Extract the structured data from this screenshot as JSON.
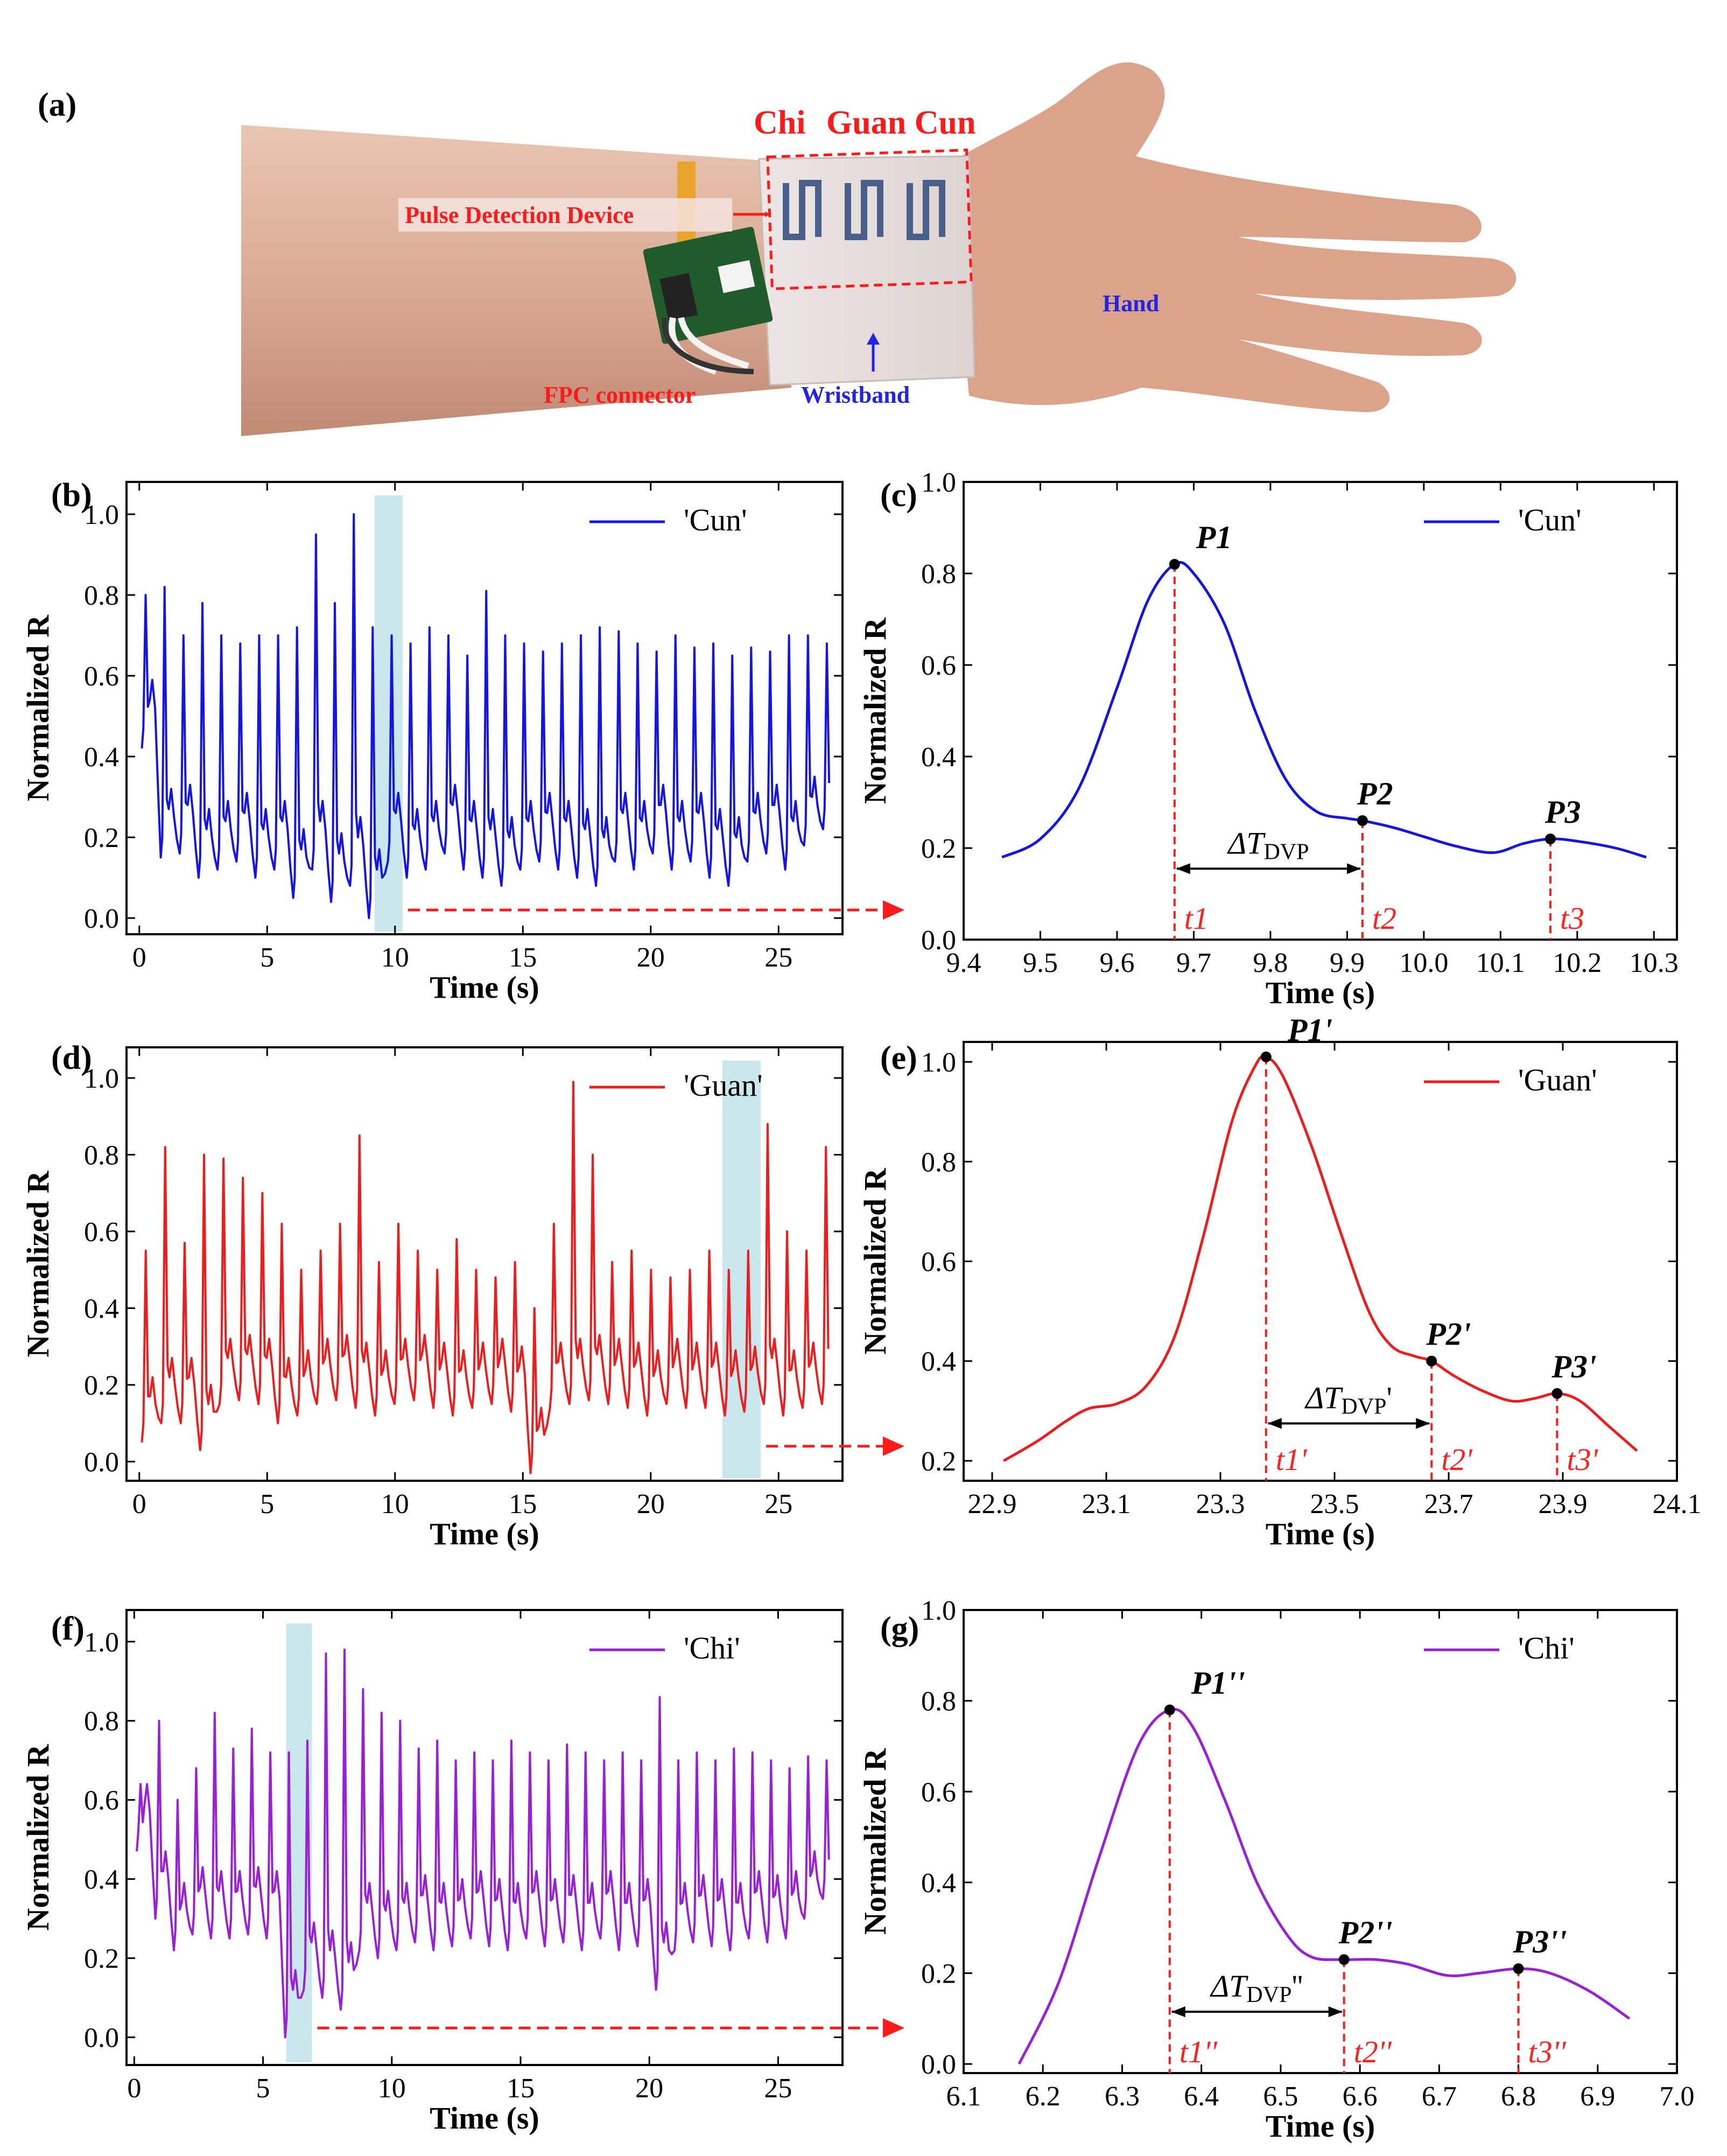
{
  "photo": {
    "panel_label": "(a)",
    "site_labels": [
      {
        "text": "Chi"
      },
      {
        "text": "Guan Cun"
      }
    ],
    "callouts": {
      "device": "Pulse Detection Device",
      "hand": "Hand",
      "fpc": "FPC connector",
      "wristband": "Wristband"
    },
    "colors": {
      "red": "#ff1a1a",
      "blue": "#2323e6"
    }
  },
  "chart_data": [
    {
      "id": "b",
      "panel_label": "(b)",
      "type": "line",
      "xlabel": "Time (s)",
      "ylabel": "Normalized R",
      "xlim": [
        -0.5,
        27.5
      ],
      "ylim": [
        -0.04,
        1.08
      ],
      "xticks": [
        "0",
        "5",
        "10",
        "15",
        "20",
        "25"
      ],
      "xtick_values": [
        0,
        5,
        10,
        15,
        20,
        25
      ],
      "yticks": [
        "0.0",
        "0.2",
        "0.4",
        "0.6",
        "0.8",
        "1.0"
      ],
      "ytick_values": [
        0,
        0.2,
        0.4,
        0.6,
        0.8,
        1.0
      ],
      "legend": "'Cun'",
      "color": "#1414e6",
      "highlight": [
        9.2,
        10.3
      ],
      "series": {
        "start": 0.1,
        "period": 0.74,
        "end": 27.0,
        "peaks": [
          0.8,
          0.82,
          0.7,
          0.78,
          0.7,
          0.68,
          0.7,
          0.7,
          0.72,
          0.95,
          0.78,
          1.0,
          0.72,
          0.7,
          0.68,
          0.72,
          0.7,
          0.65,
          0.81,
          0.7,
          0.68,
          0.66,
          0.68,
          0.7,
          0.72,
          0.71,
          0.68,
          0.66,
          0.7,
          0.67,
          0.68,
          0.65,
          0.67,
          0.66,
          0.7,
          0.7,
          0.68
        ],
        "troughs": [
          0.42,
          0.15,
          0.16,
          0.1,
          0.12,
          0.14,
          0.1,
          0.12,
          0.05,
          0.12,
          0.04,
          0.08,
          0.0,
          0.14,
          0.1,
          0.12,
          0.16,
          0.12,
          0.1,
          0.08,
          0.12,
          0.14,
          0.12,
          0.1,
          0.08,
          0.14,
          0.12,
          0.16,
          0.12,
          0.14,
          0.1,
          0.08,
          0.14,
          0.16,
          0.12,
          0.18,
          0.22
        ]
      }
    },
    {
      "id": "c",
      "panel_label": "(c)",
      "type": "line",
      "xlabel": "Time (s)",
      "ylabel": "Normalized R",
      "xlim": [
        9.4,
        10.33
      ],
      "ylim": [
        0.0,
        1.0
      ],
      "xticks": [
        "9.4",
        "9.5",
        "9.6",
        "9.7",
        "9.8",
        "9.9",
        "10.0",
        "10.1",
        "10.2",
        "10.3"
      ],
      "xtick_values": [
        9.4,
        9.5,
        9.6,
        9.7,
        9.8,
        9.9,
        10.0,
        10.1,
        10.2,
        10.3
      ],
      "yticks": [
        "0.0",
        "0.2",
        "0.4",
        "0.6",
        "0.8",
        "1.0"
      ],
      "ytick_values": [
        0,
        0.2,
        0.4,
        0.6,
        0.8,
        1.0
      ],
      "legend": "'Cun'",
      "color": "#1414e6",
      "points": [
        [
          9.45,
          0.18
        ],
        [
          9.5,
          0.22
        ],
        [
          9.55,
          0.33
        ],
        [
          9.6,
          0.55
        ],
        [
          9.64,
          0.74
        ],
        [
          9.675,
          0.82
        ],
        [
          9.7,
          0.8
        ],
        [
          9.74,
          0.69
        ],
        [
          9.78,
          0.5
        ],
        [
          9.82,
          0.35
        ],
        [
          9.86,
          0.28
        ],
        [
          9.9,
          0.265
        ],
        [
          9.92,
          0.26
        ],
        [
          9.96,
          0.245
        ],
        [
          10.0,
          0.225
        ],
        [
          10.04,
          0.205
        ],
        [
          10.09,
          0.19
        ],
        [
          10.13,
          0.21
        ],
        [
          10.165,
          0.22
        ],
        [
          10.2,
          0.215
        ],
        [
          10.25,
          0.2
        ],
        [
          10.29,
          0.18
        ]
      ],
      "markers": [
        {
          "x": 9.675,
          "y": 0.82,
          "label": "P1",
          "t_label": "t1"
        },
        {
          "x": 9.92,
          "y": 0.26,
          "label": "P2",
          "t_label": "t2"
        },
        {
          "x": 10.165,
          "y": 0.22,
          "label": "P3",
          "t_label": "t3"
        }
      ],
      "dvp": {
        "from": 9.675,
        "to": 9.92,
        "y": 0.155,
        "label_sym": "ΔT",
        "label_sub": "DVP",
        "label_prime": ""
      }
    },
    {
      "id": "d",
      "panel_label": "(d)",
      "type": "line",
      "xlabel": "Time (s)",
      "ylabel": "Normalized R",
      "xlim": [
        -0.5,
        27.5
      ],
      "ylim": [
        -0.05,
        1.08
      ],
      "xticks": [
        "0",
        "5",
        "10",
        "15",
        "20",
        "25"
      ],
      "xtick_values": [
        0,
        5,
        10,
        15,
        20,
        25
      ],
      "yticks": [
        "0.0",
        "0.2",
        "0.4",
        "0.6",
        "0.8",
        "1.0"
      ],
      "ytick_values": [
        0,
        0.2,
        0.4,
        0.6,
        0.8,
        1.0
      ],
      "legend": "'Guan'",
      "color": "#ee1c1c",
      "highlight": [
        22.8,
        24.3
      ],
      "series": {
        "start": 0.1,
        "period": 0.76,
        "end": 27.0,
        "peaks": [
          0.55,
          0.82,
          0.57,
          0.8,
          0.79,
          0.74,
          0.7,
          0.62,
          0.5,
          0.55,
          0.62,
          0.85,
          0.52,
          0.62,
          0.55,
          0.5,
          0.58,
          0.5,
          0.48,
          0.52,
          0.4,
          0.62,
          0.99,
          0.8,
          0.52,
          0.55,
          0.5,
          0.48,
          0.5,
          0.55,
          0.5,
          0.55,
          0.88,
          0.6,
          0.55,
          0.82
        ],
        "troughs": [
          0.05,
          0.1,
          0.1,
          0.03,
          0.15,
          0.16,
          0.15,
          0.1,
          0.12,
          0.15,
          0.16,
          0.14,
          0.12,
          0.15,
          0.16,
          0.14,
          0.12,
          0.14,
          0.15,
          0.13,
          -0.03,
          0.14,
          0.15,
          0.16,
          0.15,
          0.14,
          0.12,
          0.15,
          0.14,
          0.14,
          0.12,
          0.13,
          0.15,
          0.12,
          0.14,
          0.15
        ]
      }
    },
    {
      "id": "e",
      "panel_label": "(e)",
      "type": "line",
      "xlabel": "Time (s)",
      "ylabel": "Normalized R",
      "xlim": [
        22.85,
        24.1
      ],
      "ylim": [
        0.16,
        1.04
      ],
      "xticks": [
        "22.9",
        "23.1",
        "23.3",
        "23.5",
        "23.7",
        "23.9",
        "24.1"
      ],
      "xtick_values": [
        22.9,
        23.1,
        23.3,
        23.5,
        23.7,
        23.9,
        24.1
      ],
      "yticks": [
        "0.2",
        "0.4",
        "0.6",
        "0.8",
        "1.0"
      ],
      "ytick_values": [
        0.2,
        0.4,
        0.6,
        0.8,
        1.0
      ],
      "legend": "'Guan'",
      "color": "#ee1c1c",
      "points": [
        [
          22.92,
          0.2
        ],
        [
          22.98,
          0.24
        ],
        [
          23.03,
          0.28
        ],
        [
          23.07,
          0.305
        ],
        [
          23.12,
          0.315
        ],
        [
          23.17,
          0.35
        ],
        [
          23.22,
          0.45
        ],
        [
          23.27,
          0.65
        ],
        [
          23.32,
          0.88
        ],
        [
          23.36,
          0.99
        ],
        [
          23.38,
          1.01
        ],
        [
          23.41,
          0.97
        ],
        [
          23.46,
          0.83
        ],
        [
          23.51,
          0.66
        ],
        [
          23.56,
          0.5
        ],
        [
          23.6,
          0.43
        ],
        [
          23.64,
          0.41
        ],
        [
          23.67,
          0.4
        ],
        [
          23.71,
          0.37
        ],
        [
          23.76,
          0.34
        ],
        [
          23.81,
          0.32
        ],
        [
          23.85,
          0.325
        ],
        [
          23.89,
          0.335
        ],
        [
          23.93,
          0.32
        ],
        [
          23.98,
          0.27
        ],
        [
          24.03,
          0.22
        ]
      ],
      "markers": [
        {
          "x": 23.38,
          "y": 1.01,
          "label": "P1'",
          "t_label": "t1'"
        },
        {
          "x": 23.67,
          "y": 0.4,
          "label": "P2'",
          "t_label": "t2'"
        },
        {
          "x": 23.89,
          "y": 0.335,
          "label": "P3'",
          "t_label": "t3'"
        }
      ],
      "dvp": {
        "from": 23.38,
        "to": 23.67,
        "y": 0.275,
        "label_sym": "ΔT",
        "label_sub": "DVP",
        "label_prime": "'"
      }
    },
    {
      "id": "f",
      "panel_label": "(f)",
      "type": "line",
      "xlabel": "Time (s)",
      "ylabel": "Normalized R",
      "xlim": [
        -0.3,
        27.5
      ],
      "ylim": [
        -0.07,
        1.08
      ],
      "xticks": [
        "0",
        "5",
        "10",
        "15",
        "20",
        "25"
      ],
      "xtick_values": [
        0,
        5,
        10,
        15,
        20,
        25
      ],
      "yticks": [
        "0.0",
        "0.2",
        "0.4",
        "0.6",
        "0.8",
        "1.0"
      ],
      "ytick_values": [
        0,
        0.2,
        0.4,
        0.6,
        0.8,
        1.0
      ],
      "legend": "'Chi'",
      "color": "#9a1fd8",
      "highlight": [
        5.9,
        6.9
      ],
      "series": {
        "start": 0.1,
        "period": 0.72,
        "end": 27.0,
        "peaks": [
          0.64,
          0.8,
          0.6,
          0.68,
          0.82,
          0.73,
          0.78,
          0.72,
          0.72,
          0.75,
          0.97,
          0.98,
          0.88,
          0.82,
          0.8,
          0.73,
          0.75,
          0.7,
          0.72,
          0.7,
          0.75,
          0.72,
          0.7,
          0.74,
          0.72,
          0.7,
          0.72,
          0.7,
          0.86,
          0.7,
          0.72,
          0.7,
          0.73,
          0.72,
          0.7,
          0.68,
          0.71,
          0.7
        ],
        "troughs": [
          0.47,
          0.3,
          0.22,
          0.26,
          0.25,
          0.25,
          0.26,
          0.25,
          0.0,
          0.12,
          0.1,
          0.07,
          0.22,
          0.2,
          0.22,
          0.24,
          0.22,
          0.23,
          0.25,
          0.23,
          0.22,
          0.25,
          0.23,
          0.24,
          0.22,
          0.25,
          0.22,
          0.23,
          0.12,
          0.22,
          0.24,
          0.23,
          0.22,
          0.25,
          0.24,
          0.25,
          0.3,
          0.35
        ]
      }
    },
    {
      "id": "g",
      "panel_label": "(g)",
      "type": "line",
      "xlabel": "Time (s)",
      "ylabel": "Normalized R",
      "xlim": [
        6.1,
        7.0
      ],
      "ylim": [
        -0.02,
        1.0
      ],
      "xticks": [
        "6.1",
        "6.2",
        "6.3",
        "6.4",
        "6.5",
        "6.6",
        "6.7",
        "6.8",
        "6.9",
        "7.0"
      ],
      "xtick_values": [
        6.1,
        6.2,
        6.3,
        6.4,
        6.5,
        6.6,
        6.7,
        6.8,
        6.9,
        7.0
      ],
      "yticks": [
        "0.0",
        "0.2",
        "0.4",
        "0.6",
        "0.8",
        "1.0"
      ],
      "ytick_values": [
        0,
        0.2,
        0.4,
        0.6,
        0.8,
        1.0
      ],
      "legend": "'Chi'",
      "color": "#9a1fd8",
      "points": [
        [
          6.17,
          0.0
        ],
        [
          6.22,
          0.18
        ],
        [
          6.27,
          0.45
        ],
        [
          6.32,
          0.7
        ],
        [
          6.36,
          0.78
        ],
        [
          6.39,
          0.74
        ],
        [
          6.43,
          0.58
        ],
        [
          6.47,
          0.4
        ],
        [
          6.51,
          0.28
        ],
        [
          6.54,
          0.235
        ],
        [
          6.58,
          0.23
        ],
        [
          6.62,
          0.23
        ],
        [
          6.66,
          0.22
        ],
        [
          6.71,
          0.195
        ],
        [
          6.75,
          0.2
        ],
        [
          6.8,
          0.21
        ],
        [
          6.84,
          0.2
        ],
        [
          6.89,
          0.16
        ],
        [
          6.94,
          0.1
        ]
      ],
      "markers": [
        {
          "x": 6.36,
          "y": 0.78,
          "label": "P1''",
          "t_label": "t1''"
        },
        {
          "x": 6.58,
          "y": 0.23,
          "label": "P2''",
          "t_label": "t2''"
        },
        {
          "x": 6.8,
          "y": 0.21,
          "label": "P3''",
          "t_label": "t3''"
        }
      ],
      "dvp": {
        "from": 6.36,
        "to": 6.58,
        "y": 0.115,
        "label_sym": "ΔT",
        "label_sub": "DVP",
        "label_prime": "''"
      }
    }
  ]
}
